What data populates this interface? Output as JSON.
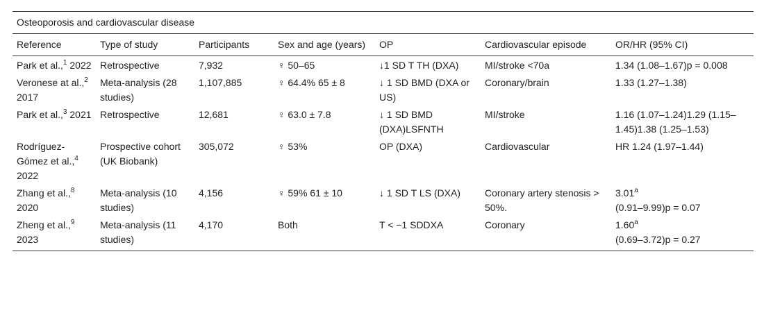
{
  "table": {
    "title": "Osteoporosis and cardiovascular disease",
    "columns": [
      "Reference",
      "Type of study",
      "Participants",
      "Sex and age (years)",
      "OP",
      "Cardiovascular episode",
      "OR/HR (95% CI)"
    ],
    "rows": [
      [
        {
          "name": "Park et al.,",
          "ref": "1",
          "year": "2022"
        },
        "Retrospective",
        "7,932",
        "♀ 50–65",
        "↓1 SD T TH (DXA)",
        "MI/stroke <70a",
        "1.34 (1.08–1.67)p = 0.008"
      ],
      [
        {
          "name": "Veronese at al.,",
          "ref": "2",
          "year": "2017"
        },
        "Meta-analysis (28 studies)",
        "1,107,885",
        "♀ 64.4% 65 ± 8",
        "↓ 1 SD BMD (DXA or US)",
        "Coronary/brain",
        "1.33 (1.27–1.38)"
      ],
      [
        {
          "name": "Park et al.,",
          "ref": "3",
          "year": "2021"
        },
        "Retrospective",
        "12,681",
        "♀ 63.0 ± 7.8",
        "↓ 1 SD BMD (DXA)LSFNTH",
        "MI/stroke",
        "1.16 (1.07–1.24)1.29 (1.15–1.45)1.38 (1.25–1.53)"
      ],
      [
        {
          "name": "Rodríguez-Gómez et al.,",
          "ref": "4",
          "year": "2022"
        },
        "Prospective cohort (UK Biobank)",
        "305,072",
        "♀ 53%",
        "OP (DXA)",
        "Cardiovascular",
        "HR 1.24 (1.97–1.44)"
      ],
      [
        {
          "name": "Zhang et al.,",
          "ref": "8",
          "year": "2020"
        },
        "Meta-analysis (10 studies)",
        "4,156",
        "♀ 59% 61 ± 10",
        "↓ 1 SD T LS (DXA)",
        "Coronary artery stenosis > 50%.",
        {
          "value": "3.01",
          "note": "a",
          "ci": "(0.91–9.99)p = 0.07"
        }
      ],
      [
        {
          "name": "Zheng et al.,",
          "ref": "9",
          "year": "2023"
        },
        "Meta-analysis (11 studies)",
        "4,170",
        "Both",
        "T < −1 SDDXA",
        "Coronary",
        {
          "value": "1.60",
          "note": "a",
          "ci": "(0.69–3.72)p = 0.27"
        }
      ]
    ]
  }
}
